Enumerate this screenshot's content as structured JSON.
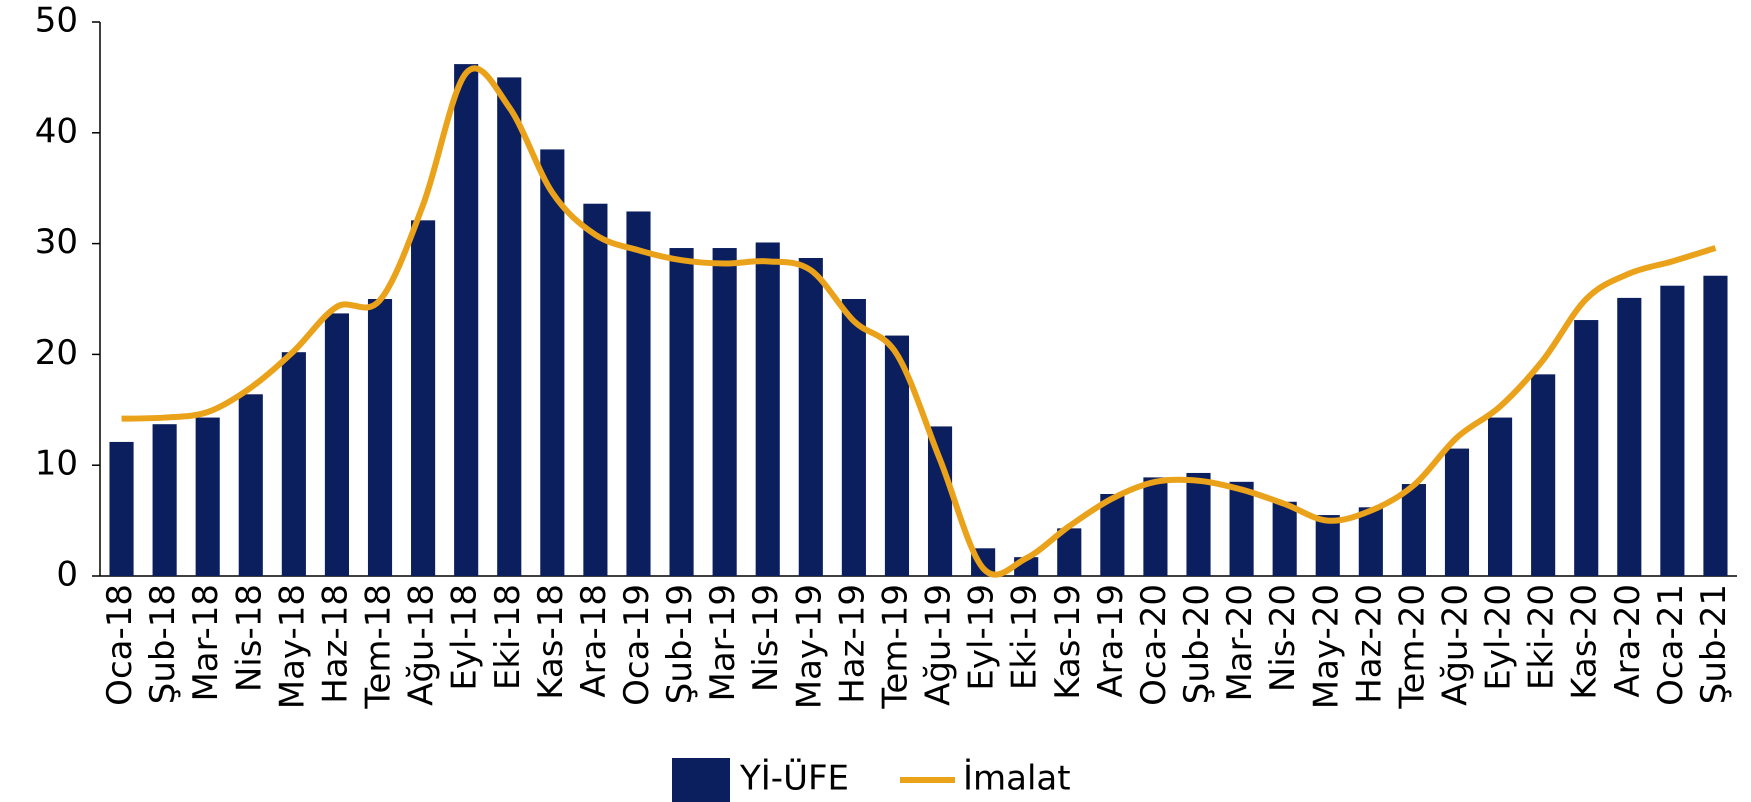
{
  "chart_data": {
    "type": "bar-line",
    "categories": [
      "Oca-18",
      "Şub-18",
      "Mar-18",
      "Nis-18",
      "May-18",
      "Haz-18",
      "Tem-18",
      "Ağu-18",
      "Eyl-18",
      "Eki-18",
      "Kas-18",
      "Ara-18",
      "Oca-19",
      "Şub-19",
      "Mar-19",
      "Nis-19",
      "May-19",
      "Haz-19",
      "Tem-19",
      "Ağu-19",
      "Eyl-19",
      "Eki-19",
      "Kas-19",
      "Ara-19",
      "Oca-20",
      "Şub-20",
      "Mar-20",
      "Nis-20",
      "May-20",
      "Haz-20",
      "Tem-20",
      "Ağu-20",
      "Eyl-20",
      "Eki-20",
      "Kas-20",
      "Ara-20",
      "Oca-21",
      "Şub-21"
    ],
    "series": [
      {
        "name": "Yİ-ÜFE",
        "type": "bar",
        "color": "#0b1f5e",
        "values": [
          12.1,
          13.7,
          14.3,
          16.4,
          20.2,
          23.7,
          25.0,
          32.1,
          46.2,
          45.0,
          38.5,
          33.6,
          32.9,
          29.6,
          29.6,
          30.1,
          28.7,
          25.0,
          21.7,
          13.5,
          2.5,
          1.7,
          4.3,
          7.4,
          8.9,
          9.3,
          8.5,
          6.7,
          5.5,
          6.2,
          8.3,
          11.5,
          14.3,
          18.2,
          23.1,
          25.1,
          26.2,
          27.1
        ]
      },
      {
        "name": "İmalat",
        "type": "line",
        "color": "#eaa21a",
        "values": [
          14.2,
          14.3,
          14.8,
          17.0,
          20.3,
          24.3,
          24.9,
          33.5,
          45.4,
          42.3,
          34.6,
          30.8,
          29.4,
          28.5,
          28.2,
          28.4,
          27.6,
          23.0,
          20.0,
          10.5,
          0.7,
          1.6,
          4.5,
          7.0,
          8.5,
          8.6,
          7.8,
          6.5,
          5.0,
          5.9,
          8.2,
          12.5,
          15.3,
          19.5,
          25.0,
          27.3,
          28.4,
          29.6
        ]
      }
    ],
    "ylim": [
      0,
      50
    ],
    "yticks": [
      0,
      10,
      20,
      30,
      40,
      50
    ],
    "grid": false,
    "legend": "bottom"
  }
}
